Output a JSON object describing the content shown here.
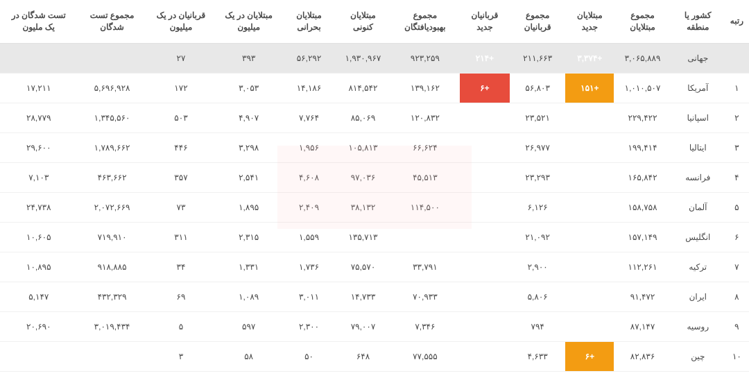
{
  "columns": [
    "رتبه",
    "کشور یا منطقه",
    "مجموع مبتلایان",
    "مبتلایان جدید",
    "مجموع قربانیان",
    "قربانیان جدید",
    "مجموع بهبودیافتگان",
    "مبتلایان کنونی",
    "مبتلایان بحرانی",
    "مبتلایان در یک میلیون",
    "قربانیان در یک میلیون",
    "مجموع تست شدگان",
    "تست شدگان در یک ملیون"
  ],
  "rows": [
    {
      "rank": "",
      "country": "جهانی",
      "total_cases": "۳,۰۶۵,۸۸۹",
      "new_cases": "+۳,۳۷۴",
      "total_deaths": "۲۱۱,۶۶۳",
      "new_deaths": "+۲۱۴",
      "recovered": "۹۲۳,۲۵۹",
      "active": "۱,۹۳۰,۹۶۷",
      "critical": "۵۶,۲۹۲",
      "cases_per_m": "۳۹۳",
      "deaths_per_m": "۲۷",
      "tests": "",
      "tests_per_m": "",
      "world": true,
      "nc_hl": "orange",
      "nd_hl": "red"
    },
    {
      "rank": "۱",
      "country": "آمریکا",
      "total_cases": "۱,۰۱۰,۵۰۷",
      "new_cases": "+۱۵۱",
      "total_deaths": "۵۶,۸۰۳",
      "new_deaths": "+۶",
      "recovered": "۱۳۹,۱۶۲",
      "active": "۸۱۴,۵۴۲",
      "critical": "۱۴,۱۸۶",
      "cases_per_m": "۳,۰۵۳",
      "deaths_per_m": "۱۷۲",
      "tests": "۵,۶۹۶,۹۲۸",
      "tests_per_m": "۱۷,۲۱۱",
      "nc_hl": "orange",
      "nd_hl": "red"
    },
    {
      "rank": "۲",
      "country": "اسپانیا",
      "total_cases": "۲۲۹,۴۲۲",
      "new_cases": "",
      "total_deaths": "۲۳,۵۲۱",
      "new_deaths": "",
      "recovered": "۱۲۰,۸۳۲",
      "active": "۸۵,۰۶۹",
      "critical": "۷,۷۶۴",
      "cases_per_m": "۴,۹۰۷",
      "deaths_per_m": "۵۰۳",
      "tests": "۱,۳۴۵,۵۶۰",
      "tests_per_m": "۲۸,۷۷۹"
    },
    {
      "rank": "۳",
      "country": "ایتالیا",
      "total_cases": "۱۹۹,۴۱۴",
      "new_cases": "",
      "total_deaths": "۲۶,۹۷۷",
      "new_deaths": "",
      "recovered": "۶۶,۶۲۴",
      "active": "۱۰۵,۸۱۳",
      "critical": "۱,۹۵۶",
      "cases_per_m": "۳,۲۹۸",
      "deaths_per_m": "۴۴۶",
      "tests": "۱,۷۸۹,۶۶۲",
      "tests_per_m": "۲۹,۶۰۰"
    },
    {
      "rank": "۴",
      "country": "فرانسه",
      "total_cases": "۱۶۵,۸۴۲",
      "new_cases": "",
      "total_deaths": "۲۳,۲۹۳",
      "new_deaths": "",
      "recovered": "۴۵,۵۱۳",
      "active": "۹۷,۰۳۶",
      "critical": "۴,۶۰۸",
      "cases_per_m": "۲,۵۴۱",
      "deaths_per_m": "۳۵۷",
      "tests": "۴۶۳,۶۶۲",
      "tests_per_m": "۷,۱۰۳"
    },
    {
      "rank": "۵",
      "country": "آلمان",
      "total_cases": "۱۵۸,۷۵۸",
      "new_cases": "",
      "total_deaths": "۶,۱۲۶",
      "new_deaths": "",
      "recovered": "۱۱۴,۵۰۰",
      "active": "۳۸,۱۳۲",
      "critical": "۲,۴۰۹",
      "cases_per_m": "۱,۸۹۵",
      "deaths_per_m": "۷۳",
      "tests": "۲,۰۷۲,۶۶۹",
      "tests_per_m": "۲۴,۷۳۸"
    },
    {
      "rank": "۶",
      "country": "انگلیس",
      "total_cases": "۱۵۷,۱۴۹",
      "new_cases": "",
      "total_deaths": "۲۱,۰۹۲",
      "new_deaths": "",
      "recovered": "",
      "active": "۱۳۵,۷۱۳",
      "critical": "۱,۵۵۹",
      "cases_per_m": "۲,۳۱۵",
      "deaths_per_m": "۳۱۱",
      "tests": "۷۱۹,۹۱۰",
      "tests_per_m": "۱۰,۶۰۵"
    },
    {
      "rank": "۷",
      "country": "ترکیه",
      "total_cases": "۱۱۲,۲۶۱",
      "new_cases": "",
      "total_deaths": "۲,۹۰۰",
      "new_deaths": "",
      "recovered": "۳۳,۷۹۱",
      "active": "۷۵,۵۷۰",
      "critical": "۱,۷۳۶",
      "cases_per_m": "۱,۳۳۱",
      "deaths_per_m": "۳۴",
      "tests": "۹۱۸,۸۸۵",
      "tests_per_m": "۱۰,۸۹۵"
    },
    {
      "rank": "۸",
      "country": "ایران",
      "total_cases": "۹۱,۴۷۲",
      "new_cases": "",
      "total_deaths": "۵,۸۰۶",
      "new_deaths": "",
      "recovered": "۷۰,۹۳۳",
      "active": "۱۴,۷۳۳",
      "critical": "۳,۰۱۱",
      "cases_per_m": "۱,۰۸۹",
      "deaths_per_m": "۶۹",
      "tests": "۴۳۲,۳۲۹",
      "tests_per_m": "۵,۱۴۷"
    },
    {
      "rank": "۹",
      "country": "روسیه",
      "total_cases": "۸۷,۱۴۷",
      "new_cases": "",
      "total_deaths": "۷۹۴",
      "new_deaths": "",
      "recovered": "۷,۳۴۶",
      "active": "۷۹,۰۰۷",
      "critical": "۲,۳۰۰",
      "cases_per_m": "۵۹۷",
      "deaths_per_m": "۵",
      "tests": "۳,۰۱۹,۴۳۴",
      "tests_per_m": "۲۰,۶۹۰"
    },
    {
      "rank": "۱۰",
      "country": "چین",
      "total_cases": "۸۲,۸۳۶",
      "new_cases": "+۶",
      "total_deaths": "۴,۶۳۳",
      "new_deaths": "",
      "recovered": "۷۷,۵۵۵",
      "active": "۶۴۸",
      "critical": "۵۰",
      "cases_per_m": "۵۸",
      "deaths_per_m": "۳",
      "tests": "",
      "tests_per_m": "",
      "nc_hl": "orange"
    }
  ],
  "highlight_colors": {
    "red": "#e74c3c",
    "orange": "#f39c12"
  }
}
